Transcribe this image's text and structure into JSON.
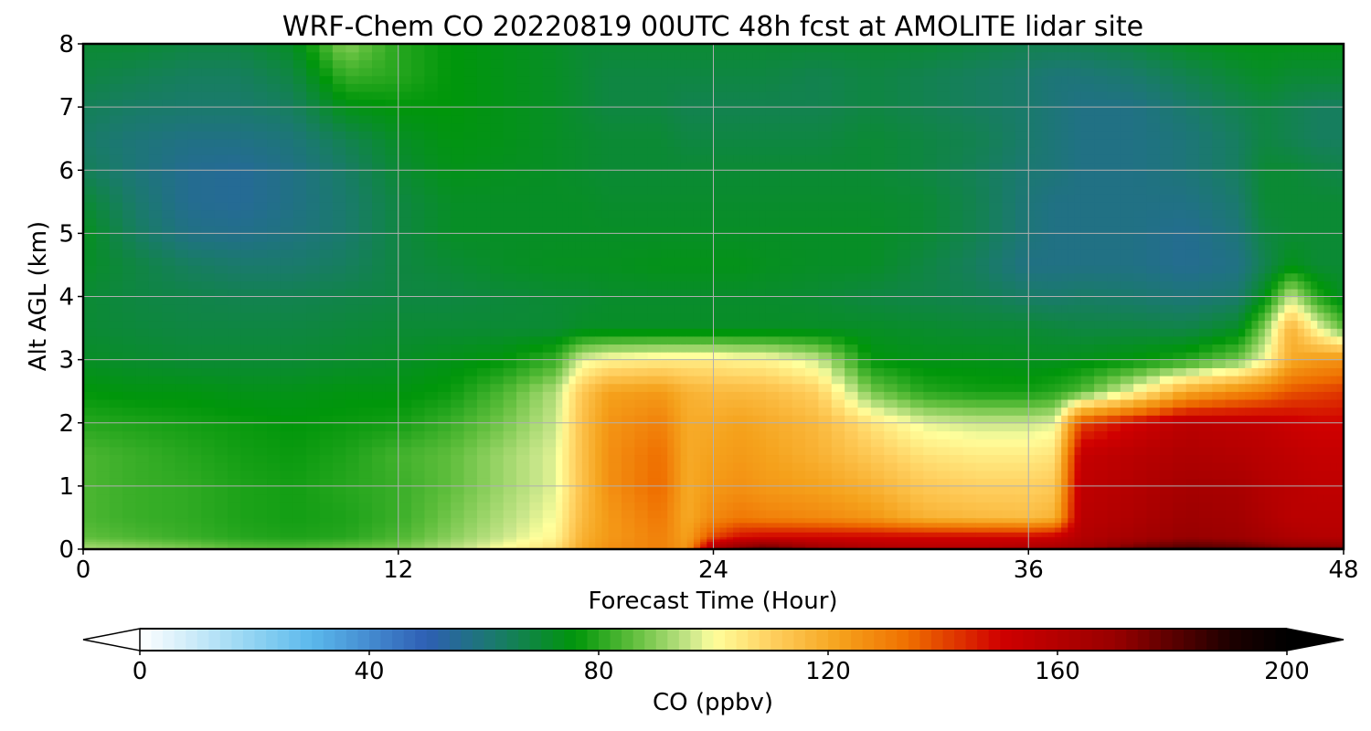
{
  "chart_data": {
    "type": "heatmap",
    "title": "WRF-Chem CO  20220819 00UTC 48h fcst at AMOLITE lidar site",
    "xlabel": "Forecast Time (Hour)",
    "ylabel": "Alt AGL (km)",
    "xlim": [
      0,
      48
    ],
    "ylim": [
      0,
      8
    ],
    "xticks": [
      0,
      12,
      24,
      36,
      48
    ],
    "yticks": [
      0,
      1,
      2,
      3,
      4,
      5,
      6,
      7,
      8
    ],
    "grid": true,
    "colorbar": {
      "label": "CO  (ppbv)",
      "min": 0,
      "max": 200,
      "ticks": [
        0,
        40,
        80,
        120,
        160,
        200
      ],
      "extend": "both",
      "stops": [
        {
          "value": 0,
          "color": "#ffffff"
        },
        {
          "value": 20,
          "color": "#8fd3f2"
        },
        {
          "value": 30,
          "color": "#5bb8ec"
        },
        {
          "value": 50,
          "color": "#2e5fb4"
        },
        {
          "value": 62,
          "color": "#1a7a6c"
        },
        {
          "value": 76,
          "color": "#00960a"
        },
        {
          "value": 86,
          "color": "#5fbe3c"
        },
        {
          "value": 96,
          "color": "#c8e68a"
        },
        {
          "value": 100,
          "color": "#ffff9c"
        },
        {
          "value": 110,
          "color": "#ffd060"
        },
        {
          "value": 122,
          "color": "#f5a21c"
        },
        {
          "value": 134,
          "color": "#ef6f00"
        },
        {
          "value": 150,
          "color": "#d00000"
        },
        {
          "value": 170,
          "color": "#980000"
        },
        {
          "value": 190,
          "color": "#1e0000"
        },
        {
          "value": 200,
          "color": "#000000"
        }
      ]
    },
    "x": [
      0,
      2,
      4,
      6,
      8,
      10,
      12,
      14,
      16,
      18,
      19,
      20,
      22,
      23,
      24,
      25,
      26,
      28,
      30,
      32,
      34,
      36,
      37,
      38,
      40,
      42,
      44,
      45,
      46,
      47,
      48
    ],
    "y": [
      0,
      0.05,
      0.2,
      0.5,
      1,
      1.5,
      2,
      2.5,
      3,
      3.5,
      4,
      4.5,
      5,
      5.5,
      6,
      6.5,
      7,
      7.5,
      8
    ],
    "z": [
      [
        95,
        93,
        91,
        88,
        88,
        89,
        91,
        96,
        102,
        108,
        120,
        126,
        132,
        126,
        175,
        185,
        190,
        185,
        182,
        178,
        180,
        185,
        188,
        188,
        195,
        200,
        200,
        200,
        200,
        200,
        200
      ],
      [
        92,
        90,
        88,
        85,
        84,
        86,
        88,
        94,
        100,
        106,
        120,
        126,
        130,
        124,
        160,
        170,
        176,
        165,
        160,
        158,
        158,
        160,
        162,
        165,
        175,
        180,
        178,
        175,
        172,
        172,
        172
      ],
      [
        86,
        84,
        82,
        80,
        79,
        80,
        84,
        90,
        96,
        102,
        118,
        124,
        130,
        122,
        140,
        148,
        150,
        150,
        150,
        150,
        150,
        150,
        152,
        160,
        165,
        170,
        168,
        165,
        162,
        160,
        160
      ],
      [
        84,
        82,
        81,
        79,
        78,
        79,
        82,
        88,
        94,
        100,
        116,
        124,
        132,
        120,
        128,
        132,
        130,
        128,
        125,
        118,
        116,
        115,
        118,
        158,
        162,
        168,
        166,
        162,
        158,
        158,
        158
      ],
      [
        84,
        82,
        81,
        79,
        78,
        80,
        82,
        86,
        92,
        98,
        114,
        126,
        135,
        120,
        124,
        126,
        124,
        122,
        118,
        112,
        110,
        110,
        112,
        156,
        160,
        165,
        164,
        160,
        158,
        156,
        156
      ],
      [
        84,
        82,
        80,
        78,
        77,
        79,
        83,
        86,
        92,
        98,
        114,
        126,
        134,
        120,
        122,
        124,
        122,
        118,
        112,
        106,
        104,
        104,
        106,
        154,
        158,
        162,
        160,
        158,
        156,
        154,
        154
      ],
      [
        80,
        79,
        78,
        77,
        76,
        77,
        78,
        82,
        88,
        96,
        114,
        125,
        130,
        120,
        120,
        122,
        120,
        116,
        106,
        98,
        96,
        96,
        98,
        140,
        150,
        158,
        156,
        155,
        152,
        150,
        150
      ],
      [
        76,
        75,
        75,
        74,
        74,
        75,
        75,
        77,
        84,
        94,
        112,
        122,
        124,
        118,
        116,
        116,
        115,
        110,
        88,
        80,
        78,
        78,
        80,
        84,
        100,
        120,
        128,
        132,
        138,
        140,
        142
      ],
      [
        72,
        71,
        70,
        70,
        70,
        71,
        72,
        74,
        76,
        82,
        98,
        102,
        104,
        104,
        104,
        102,
        102,
        96,
        76,
        74,
        74,
        73,
        73,
        74,
        76,
        80,
        88,
        100,
        120,
        124,
        126
      ],
      [
        70,
        69,
        68,
        68,
        68,
        69,
        70,
        70,
        70,
        70,
        72,
        72,
        72,
        72,
        72,
        72,
        72,
        72,
        72,
        71,
        70,
        70,
        69,
        68,
        68,
        67,
        72,
        90,
        118,
        100,
        86
      ],
      [
        70,
        68,
        67,
        66,
        66,
        67,
        68,
        68,
        69,
        70,
        70,
        71,
        71,
        71,
        71,
        71,
        71,
        70,
        68,
        67,
        66,
        63,
        62,
        63,
        62,
        60,
        62,
        74,
        96,
        80,
        72
      ],
      [
        72,
        68,
        64,
        62,
        62,
        64,
        68,
        70,
        72,
        73,
        73,
        73,
        74,
        74,
        74,
        74,
        73,
        72,
        72,
        68,
        64,
        58,
        58,
        58,
        58,
        56,
        58,
        66,
        74,
        70,
        70
      ],
      [
        73,
        64,
        58,
        57,
        59,
        62,
        68,
        72,
        72,
        72,
        72,
        72,
        72,
        72,
        72,
        72,
        72,
        72,
        72,
        70,
        66,
        60,
        58,
        58,
        58,
        56,
        60,
        68,
        70,
        70,
        70
      ],
      [
        70,
        62,
        56,
        55,
        58,
        62,
        68,
        72,
        72,
        72,
        72,
        71,
        71,
        71,
        71,
        71,
        71,
        71,
        71,
        70,
        66,
        60,
        58,
        58,
        58,
        58,
        62,
        70,
        70,
        70,
        70
      ],
      [
        65,
        60,
        56,
        55,
        58,
        63,
        70,
        74,
        73,
        72,
        71,
        70,
        70,
        70,
        70,
        70,
        70,
        70,
        70,
        68,
        65,
        61,
        60,
        58,
        58,
        60,
        64,
        70,
        70,
        68,
        67
      ],
      [
        63,
        60,
        58,
        58,
        60,
        66,
        72,
        75,
        74,
        72,
        71,
        70,
        70,
        68,
        68,
        68,
        68,
        68,
        70,
        68,
        66,
        62,
        60,
        58,
        58,
        60,
        64,
        68,
        66,
        64,
        64
      ],
      [
        65,
        63,
        62,
        62,
        64,
        74,
        76,
        76,
        74,
        72,
        70,
        68,
        68,
        66,
        66,
        66,
        66,
        66,
        68,
        66,
        64,
        62,
        60,
        58,
        58,
        62,
        66,
        68,
        66,
        64,
        64
      ],
      [
        68,
        66,
        64,
        64,
        68,
        82,
        80,
        76,
        74,
        72,
        70,
        68,
        68,
        68,
        68,
        68,
        68,
        66,
        68,
        66,
        64,
        62,
        60,
        60,
        62,
        66,
        70,
        72,
        70,
        70,
        70
      ],
      [
        70,
        70,
        68,
        68,
        72,
        90,
        80,
        76,
        74,
        72,
        70,
        70,
        70,
        70,
        70,
        70,
        70,
        70,
        70,
        70,
        68,
        66,
        66,
        66,
        68,
        72,
        74,
        74,
        74,
        74,
        74
      ]
    ]
  }
}
